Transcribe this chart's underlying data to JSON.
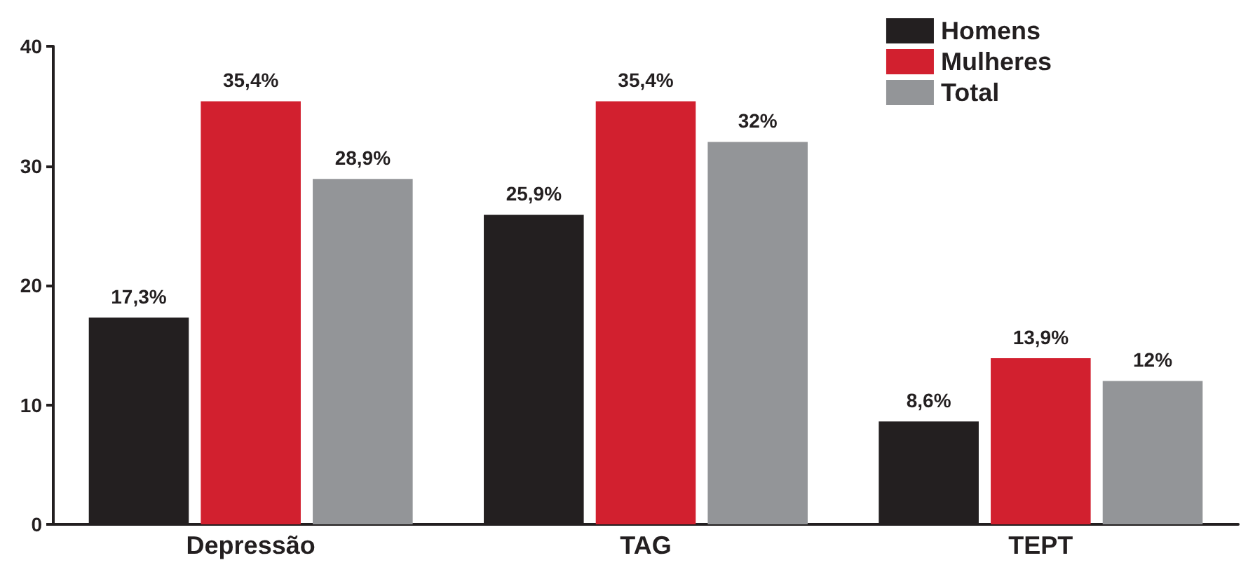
{
  "chart_data": {
    "type": "bar",
    "categories": [
      "Depressão",
      "TAG",
      "TEPT"
    ],
    "series": [
      {
        "name": "Homens",
        "color": "#231f20",
        "values": [
          17.3,
          25.9,
          8.6
        ],
        "value_labels": [
          "17,3%",
          "25,9%",
          "8,6%"
        ]
      },
      {
        "name": "Mulheres",
        "color": "#d2202f",
        "values": [
          35.4,
          35.4,
          13.9
        ],
        "value_labels": [
          "35,4%",
          "35,4%",
          "13,9%"
        ]
      },
      {
        "name": "Total",
        "color": "#939598",
        "values": [
          28.9,
          32,
          12
        ],
        "value_labels": [
          "28,9%",
          "32%",
          "12%"
        ]
      }
    ],
    "ylim": [
      0,
      40
    ],
    "yticks": [
      0,
      10,
      20,
      30,
      40
    ],
    "grid": false,
    "legend": "top right"
  }
}
